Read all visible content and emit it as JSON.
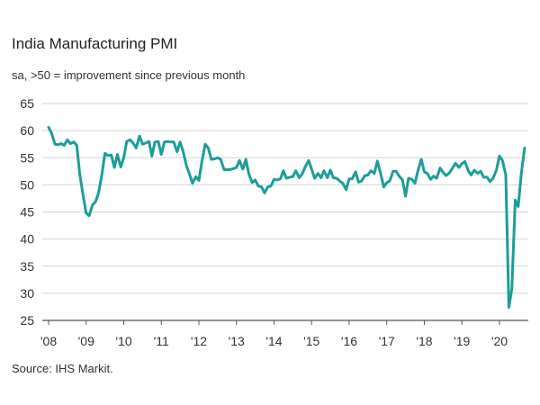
{
  "chart_data": {
    "type": "line",
    "title": "India Manufacturing PMI",
    "subtitle": "sa, >50 = improvement since previous month",
    "source": "Source: IHS Markit.",
    "xlabel": "",
    "ylabel": "",
    "ylim": [
      25,
      65
    ],
    "yticks": [
      25,
      30,
      35,
      40,
      45,
      50,
      55,
      60,
      65
    ],
    "xticks": [
      "'08",
      "'09",
      "'10",
      "'11",
      "'12",
      "'13",
      "'14",
      "'15",
      "'16",
      "'17",
      "'18",
      "'19",
      "'20"
    ],
    "xrange": [
      2008.0,
      2020.72
    ],
    "grid": "horizontal",
    "line_color": "#1b9e98",
    "series": [
      {
        "name": "India Manufacturing PMI",
        "points": [
          [
            2008.0,
            60.6
          ],
          [
            2008.08,
            59.5
          ],
          [
            2008.17,
            57.5
          ],
          [
            2008.25,
            57.4
          ],
          [
            2008.33,
            57.6
          ],
          [
            2008.42,
            57.3
          ],
          [
            2008.5,
            58.3
          ],
          [
            2008.58,
            57.6
          ],
          [
            2008.67,
            57.9
          ],
          [
            2008.75,
            57.3
          ],
          [
            2008.83,
            52.0
          ],
          [
            2008.92,
            48.0
          ],
          [
            2009.0,
            44.8
          ],
          [
            2009.08,
            44.3
          ],
          [
            2009.17,
            46.3
          ],
          [
            2009.25,
            46.9
          ],
          [
            2009.33,
            48.5
          ],
          [
            2009.42,
            52.0
          ],
          [
            2009.5,
            55.8
          ],
          [
            2009.58,
            55.4
          ],
          [
            2009.67,
            55.5
          ],
          [
            2009.75,
            53.2
          ],
          [
            2009.83,
            55.6
          ],
          [
            2009.92,
            53.3
          ],
          [
            2010.0,
            55.0
          ],
          [
            2010.08,
            58.0
          ],
          [
            2010.17,
            58.3
          ],
          [
            2010.25,
            57.7
          ],
          [
            2010.33,
            56.8
          ],
          [
            2010.42,
            59.0
          ],
          [
            2010.5,
            57.5
          ],
          [
            2010.58,
            57.7
          ],
          [
            2010.67,
            58.0
          ],
          [
            2010.75,
            55.3
          ],
          [
            2010.83,
            57.9
          ],
          [
            2010.92,
            58.0
          ],
          [
            2011.0,
            55.6
          ],
          [
            2011.08,
            57.9
          ],
          [
            2011.17,
            58.0
          ],
          [
            2011.25,
            57.9
          ],
          [
            2011.33,
            57.9
          ],
          [
            2011.42,
            56.1
          ],
          [
            2011.5,
            57.9
          ],
          [
            2011.58,
            56.2
          ],
          [
            2011.67,
            53.5
          ],
          [
            2011.75,
            52.0
          ],
          [
            2011.83,
            50.3
          ],
          [
            2011.92,
            51.5
          ],
          [
            2012.0,
            50.8
          ],
          [
            2012.08,
            54.3
          ],
          [
            2012.17,
            57.5
          ],
          [
            2012.25,
            56.8
          ],
          [
            2012.33,
            54.7
          ],
          [
            2012.42,
            54.8
          ],
          [
            2012.5,
            55.0
          ],
          [
            2012.58,
            54.7
          ],
          [
            2012.67,
            52.8
          ],
          [
            2012.75,
            52.8
          ],
          [
            2012.83,
            52.8
          ],
          [
            2012.92,
            53.0
          ],
          [
            2013.0,
            53.2
          ],
          [
            2013.08,
            54.5
          ],
          [
            2013.17,
            52.9
          ],
          [
            2013.25,
            54.7
          ],
          [
            2013.33,
            52.0
          ],
          [
            2013.42,
            50.4
          ],
          [
            2013.5,
            50.9
          ],
          [
            2013.58,
            49.8
          ],
          [
            2013.67,
            49.6
          ],
          [
            2013.75,
            48.5
          ],
          [
            2013.83,
            49.6
          ],
          [
            2013.92,
            49.8
          ],
          [
            2014.0,
            51.0
          ],
          [
            2014.08,
            50.9
          ],
          [
            2014.17,
            51.1
          ],
          [
            2014.25,
            52.6
          ],
          [
            2014.33,
            51.2
          ],
          [
            2014.42,
            51.4
          ],
          [
            2014.5,
            51.5
          ],
          [
            2014.58,
            52.6
          ],
          [
            2014.67,
            51.3
          ],
          [
            2014.75,
            52.0
          ],
          [
            2014.83,
            53.3
          ],
          [
            2014.92,
            54.5
          ],
          [
            2015.0,
            52.9
          ],
          [
            2015.08,
            51.2
          ],
          [
            2015.17,
            52.1
          ],
          [
            2015.25,
            51.3
          ],
          [
            2015.33,
            52.6
          ],
          [
            2015.42,
            51.3
          ],
          [
            2015.5,
            52.7
          ],
          [
            2015.58,
            51.3
          ],
          [
            2015.67,
            51.2
          ],
          [
            2015.75,
            50.7
          ],
          [
            2015.83,
            50.3
          ],
          [
            2015.92,
            49.1
          ],
          [
            2016.0,
            51.1
          ],
          [
            2016.08,
            51.1
          ],
          [
            2016.17,
            52.4
          ],
          [
            2016.25,
            50.5
          ],
          [
            2016.33,
            50.7
          ],
          [
            2016.42,
            51.7
          ],
          [
            2016.5,
            51.8
          ],
          [
            2016.58,
            52.6
          ],
          [
            2016.67,
            52.1
          ],
          [
            2016.75,
            54.4
          ],
          [
            2016.83,
            52.3
          ],
          [
            2016.92,
            49.6
          ],
          [
            2017.0,
            50.4
          ],
          [
            2017.08,
            50.7
          ],
          [
            2017.17,
            52.5
          ],
          [
            2017.25,
            52.5
          ],
          [
            2017.33,
            51.6
          ],
          [
            2017.42,
            50.9
          ],
          [
            2017.5,
            47.9
          ],
          [
            2017.58,
            51.2
          ],
          [
            2017.67,
            51.0
          ],
          [
            2017.75,
            50.3
          ],
          [
            2017.83,
            52.6
          ],
          [
            2017.92,
            54.7
          ],
          [
            2018.0,
            52.4
          ],
          [
            2018.08,
            52.1
          ],
          [
            2018.17,
            51.0
          ],
          [
            2018.25,
            51.6
          ],
          [
            2018.33,
            51.2
          ],
          [
            2018.42,
            53.1
          ],
          [
            2018.5,
            52.3
          ],
          [
            2018.58,
            51.7
          ],
          [
            2018.67,
            52.2
          ],
          [
            2018.75,
            53.1
          ],
          [
            2018.83,
            54.0
          ],
          [
            2018.92,
            53.2
          ],
          [
            2019.0,
            53.9
          ],
          [
            2019.08,
            54.3
          ],
          [
            2019.17,
            52.6
          ],
          [
            2019.25,
            51.8
          ],
          [
            2019.33,
            52.7
          ],
          [
            2019.42,
            52.1
          ],
          [
            2019.5,
            52.5
          ],
          [
            2019.58,
            51.4
          ],
          [
            2019.67,
            51.4
          ],
          [
            2019.75,
            50.6
          ],
          [
            2019.83,
            51.2
          ],
          [
            2019.92,
            52.7
          ],
          [
            2020.0,
            55.3
          ],
          [
            2020.08,
            54.5
          ],
          [
            2020.17,
            51.8
          ],
          [
            2020.25,
            27.4
          ],
          [
            2020.33,
            30.8
          ],
          [
            2020.42,
            47.2
          ],
          [
            2020.5,
            46.0
          ],
          [
            2020.58,
            52.0
          ],
          [
            2020.67,
            56.8
          ]
        ]
      }
    ]
  }
}
